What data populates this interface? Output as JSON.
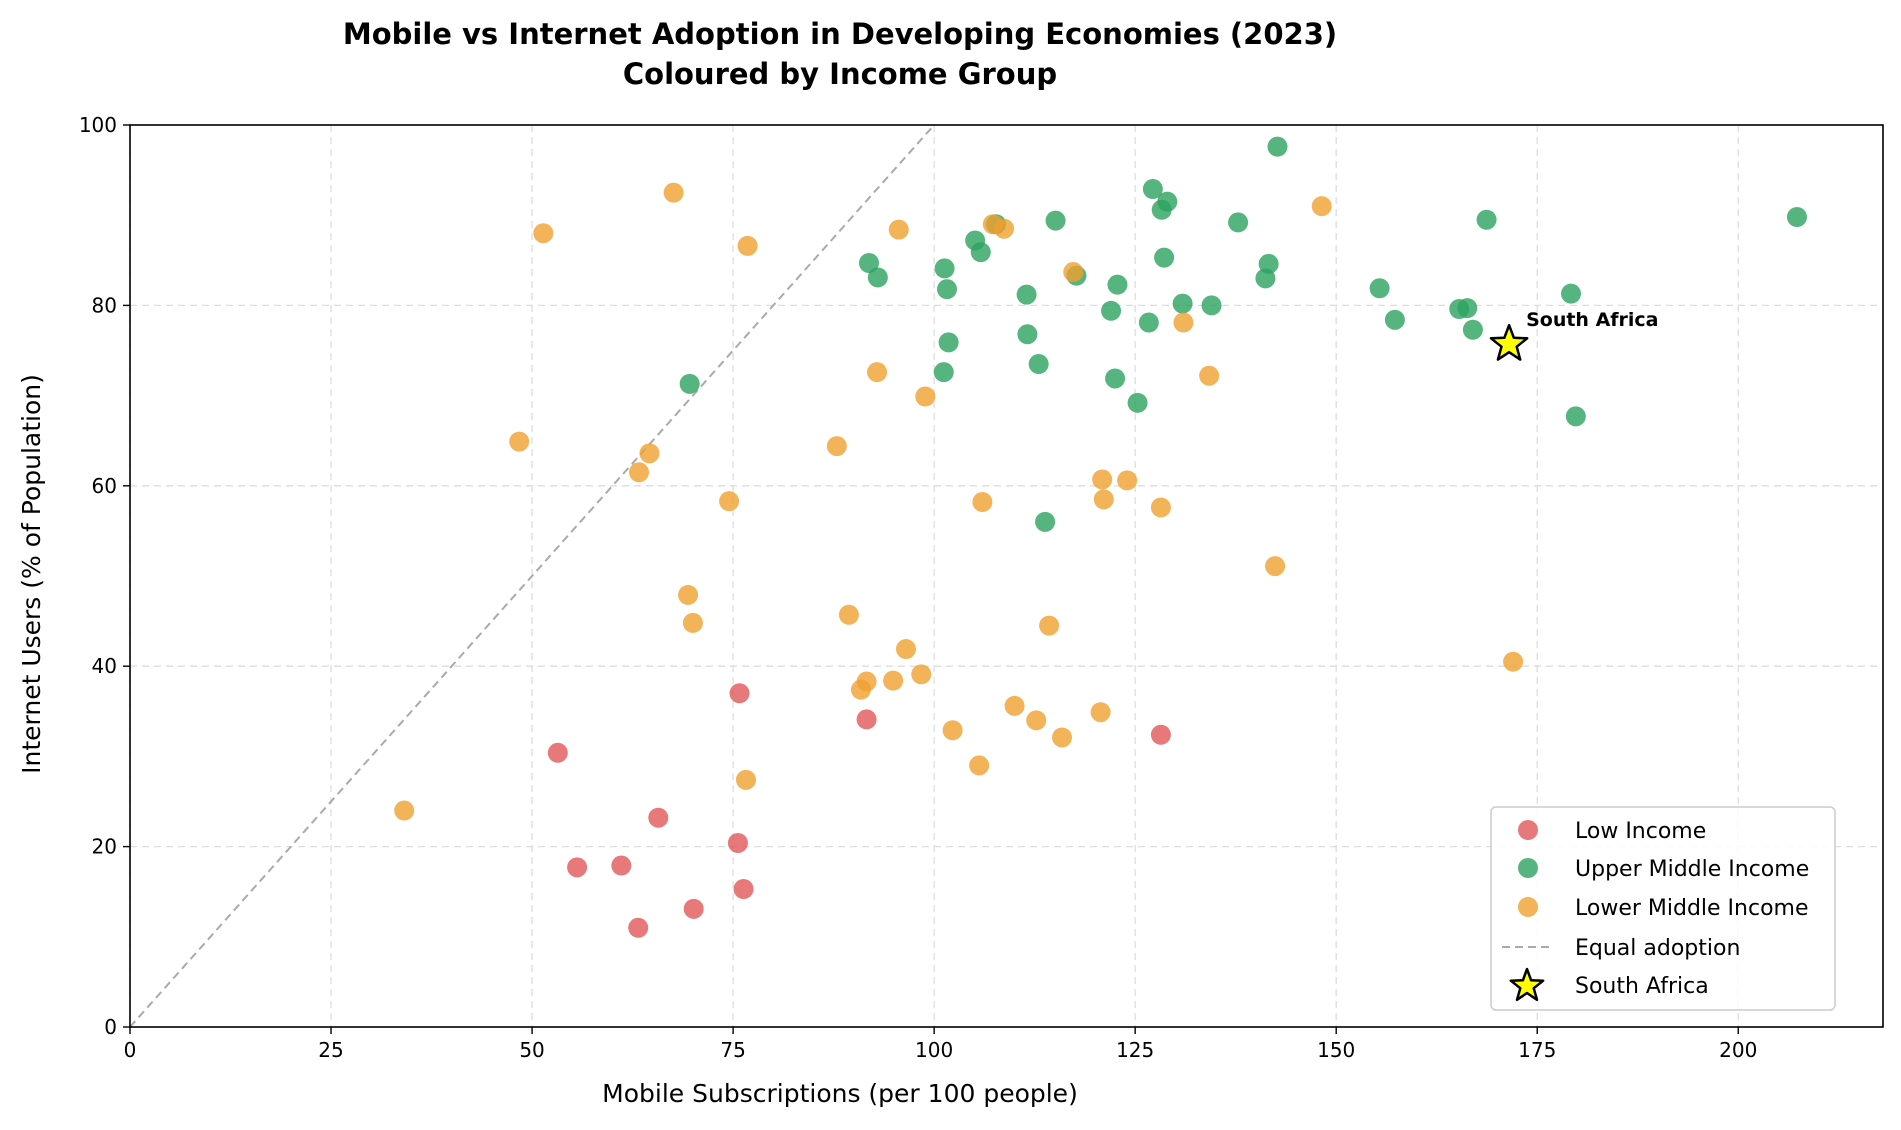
{
  "chart_data": {
    "type": "scatter",
    "title": "Mobile vs Internet Adoption in Developing Economies (2023)",
    "subtitle": "Coloured by Income Group",
    "xlabel": "Mobile Subscriptions (per 100 people)",
    "ylabel": "Internet Users (% of Population)",
    "xlim": [
      0,
      218
    ],
    "ylim": [
      0,
      100
    ],
    "xticks": [
      0,
      25,
      50,
      75,
      100,
      125,
      150,
      175,
      200
    ],
    "yticks": [
      0,
      20,
      40,
      60,
      80,
      100
    ],
    "grid": true,
    "legend_position": "bottom-right",
    "series": [
      {
        "name": "Low Income",
        "color": "#e15759",
        "points": [
          [
            53.2,
            30.4
          ],
          [
            55.6,
            17.7
          ],
          [
            61.1,
            17.9
          ],
          [
            63.2,
            11.0
          ],
          [
            65.7,
            23.2
          ],
          [
            70.1,
            13.1
          ],
          [
            75.6,
            20.4
          ],
          [
            75.8,
            37.0
          ],
          [
            76.3,
            15.3
          ],
          [
            91.6,
            34.1
          ],
          [
            128.2,
            32.4
          ]
        ]
      },
      {
        "name": "Upper Middle Income",
        "color": "#2ca25f",
        "points": [
          [
            69.6,
            71.3
          ],
          [
            91.9,
            84.7
          ],
          [
            93.0,
            83.1
          ],
          [
            101.2,
            72.6
          ],
          [
            101.3,
            84.1
          ],
          [
            101.6,
            81.8
          ],
          [
            101.8,
            75.9
          ],
          [
            105.1,
            87.2
          ],
          [
            105.8,
            85.9
          ],
          [
            107.7,
            89.0
          ],
          [
            111.5,
            81.2
          ],
          [
            111.6,
            76.8
          ],
          [
            113.0,
            73.5
          ],
          [
            113.8,
            56.0
          ],
          [
            115.1,
            89.4
          ],
          [
            117.7,
            83.3
          ],
          [
            122.0,
            79.4
          ],
          [
            122.5,
            71.9
          ],
          [
            122.8,
            82.3
          ],
          [
            125.3,
            69.2
          ],
          [
            126.7,
            78.1
          ],
          [
            127.2,
            92.9
          ],
          [
            128.3,
            90.6
          ],
          [
            128.6,
            85.3
          ],
          [
            129.0,
            91.5
          ],
          [
            130.9,
            80.2
          ],
          [
            134.5,
            80.0
          ],
          [
            137.8,
            89.2
          ],
          [
            141.2,
            83.0
          ],
          [
            141.6,
            84.6
          ],
          [
            142.7,
            97.6
          ],
          [
            155.4,
            81.9
          ],
          [
            157.3,
            78.4
          ],
          [
            165.3,
            79.6
          ],
          [
            166.3,
            79.7
          ],
          [
            167.0,
            77.3
          ],
          [
            168.7,
            89.5
          ],
          [
            179.2,
            81.3
          ],
          [
            179.8,
            67.7
          ],
          [
            207.3,
            89.8
          ]
        ]
      },
      {
        "name": "Lower Middle Income",
        "color": "#f0a030",
        "points": [
          [
            34.1,
            24.0
          ],
          [
            48.4,
            64.9
          ],
          [
            51.4,
            88.0
          ],
          [
            63.3,
            61.5
          ],
          [
            64.6,
            63.6
          ],
          [
            67.6,
            92.5
          ],
          [
            69.4,
            47.9
          ],
          [
            70.0,
            44.8
          ],
          [
            74.5,
            58.3
          ],
          [
            76.6,
            27.4
          ],
          [
            76.8,
            86.6
          ],
          [
            87.9,
            64.4
          ],
          [
            89.4,
            45.7
          ],
          [
            90.9,
            37.4
          ],
          [
            91.6,
            38.3
          ],
          [
            92.9,
            72.6
          ],
          [
            94.9,
            38.4
          ],
          [
            95.6,
            88.4
          ],
          [
            96.5,
            41.9
          ],
          [
            98.4,
            39.1
          ],
          [
            98.9,
            69.9
          ],
          [
            102.3,
            32.9
          ],
          [
            105.6,
            29.0
          ],
          [
            106.0,
            58.2
          ],
          [
            107.3,
            89.0
          ],
          [
            108.7,
            88.5
          ],
          [
            110.0,
            35.6
          ],
          [
            112.7,
            34.0
          ],
          [
            114.3,
            44.5
          ],
          [
            115.9,
            32.1
          ],
          [
            117.3,
            83.7
          ],
          [
            120.7,
            34.9
          ],
          [
            120.9,
            60.7
          ],
          [
            121.1,
            58.5
          ],
          [
            124.0,
            60.6
          ],
          [
            128.2,
            57.6
          ],
          [
            131.0,
            78.1
          ],
          [
            134.2,
            72.2
          ],
          [
            142.4,
            51.1
          ],
          [
            148.2,
            91.0
          ],
          [
            172.0,
            40.5
          ]
        ]
      }
    ],
    "reference_line": {
      "name": "Equal adoption",
      "color": "#aaaaaa",
      "from": [
        0,
        0
      ],
      "to": [
        100,
        100
      ]
    },
    "highlight": {
      "name": "South Africa",
      "label": "South Africa",
      "x": 171.5,
      "y": 75.7,
      "color": "#ffff00"
    },
    "legend": [
      "Low Income",
      "Upper Middle Income",
      "Lower Middle Income",
      "Equal adoption",
      "South Africa"
    ]
  }
}
